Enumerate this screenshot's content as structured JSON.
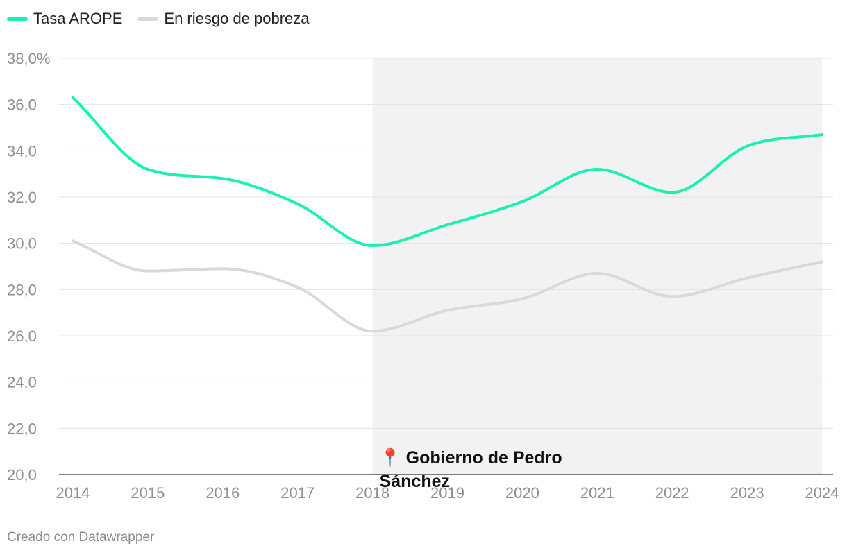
{
  "legend": [
    {
      "label": "Tasa AROPE",
      "color": "#19f0b4"
    },
    {
      "label": "En riesgo de pobreza",
      "color": "#d9d9d9"
    }
  ],
  "footer": "Creado con Datawrapper",
  "chart_data": {
    "type": "line",
    "x": [
      2014,
      2015,
      2016,
      2017,
      2018,
      2019,
      2020,
      2021,
      2022,
      2023,
      2024
    ],
    "series": [
      {
        "name": "Tasa AROPE",
        "color": "#19f0b4",
        "values": [
          36.3,
          33.2,
          32.8,
          31.7,
          29.9,
          30.8,
          31.8,
          33.2,
          32.2,
          34.2,
          34.7
        ]
      },
      {
        "name": "En riesgo de pobreza",
        "color": "#d9d9d9",
        "values": [
          30.1,
          28.8,
          28.9,
          28.1,
          26.2,
          27.1,
          27.6,
          28.7,
          27.7,
          28.5,
          29.2
        ]
      }
    ],
    "xlim": [
      2014,
      2024
    ],
    "ylim": [
      20,
      38
    ],
    "yticks": [
      20,
      22,
      24,
      26,
      28,
      30,
      32,
      34,
      36,
      38
    ],
    "ytick_labels": [
      "20,0",
      "22,0",
      "24,0",
      "26,0",
      "28,0",
      "30,0",
      "32,0",
      "34,0",
      "36,0",
      "38,0%"
    ],
    "xtick_labels": [
      "2014",
      "2015",
      "2016",
      "2017",
      "2018",
      "2019",
      "2020",
      "2021",
      "2022",
      "2023",
      "2024"
    ],
    "shaded_range": [
      2018,
      2024
    ],
    "shade_color": "#f2f2f2",
    "annotation": {
      "icon": "📍",
      "lines": [
        "Gobierno de Pedro",
        "Sánchez"
      ],
      "x": 2018
    },
    "grid": true
  }
}
